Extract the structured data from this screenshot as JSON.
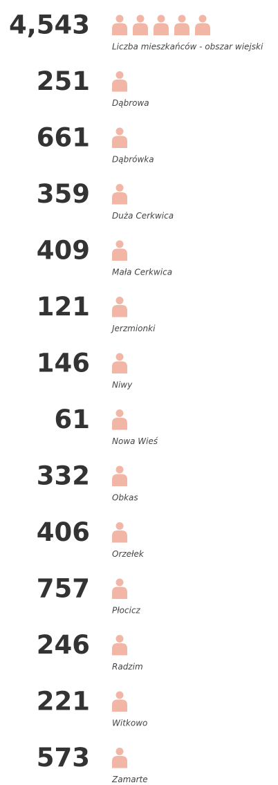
{
  "chart_data": {
    "type": "pictogram",
    "categories": [
      "Liczba mieszkańców - obszar wiejski",
      "Dąbrowa",
      "Dąbrówka",
      "Duża Cerkwica",
      "Mała Cerkwica",
      "Jerzmionki",
      "Niwy",
      "Nowa Wieś",
      "Obkas",
      "Orzełek",
      "Płocicz",
      "Radzim",
      "Witkowo",
      "Zamarte"
    ],
    "values": [
      4543,
      251,
      661,
      359,
      409,
      121,
      146,
      61,
      332,
      406,
      757,
      246,
      221,
      573
    ],
    "value_labels": [
      "4,543",
      "251",
      "661",
      "359",
      "409",
      "121",
      "146",
      "61",
      "332",
      "406",
      "757",
      "246",
      "221",
      "573"
    ],
    "xlim": [
      0,
      5000
    ],
    "color": "#c8320f",
    "background_color": "#f2b6a6"
  }
}
